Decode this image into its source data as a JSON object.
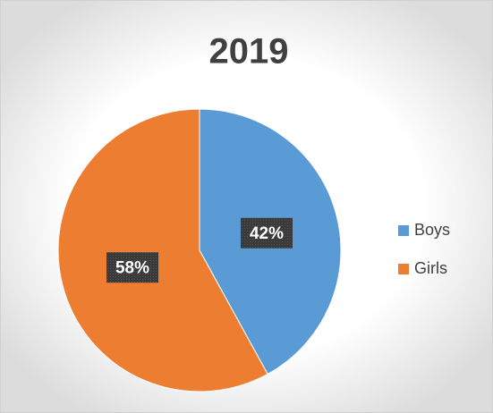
{
  "chart_data": {
    "type": "pie",
    "title": "2019",
    "categories": [
      "Boys",
      "Girls"
    ],
    "values": [
      42,
      58
    ],
    "value_labels": [
      "42%",
      "58%"
    ],
    "colors": [
      "#5b9bd5",
      "#ed7d31"
    ],
    "legend": "right"
  }
}
